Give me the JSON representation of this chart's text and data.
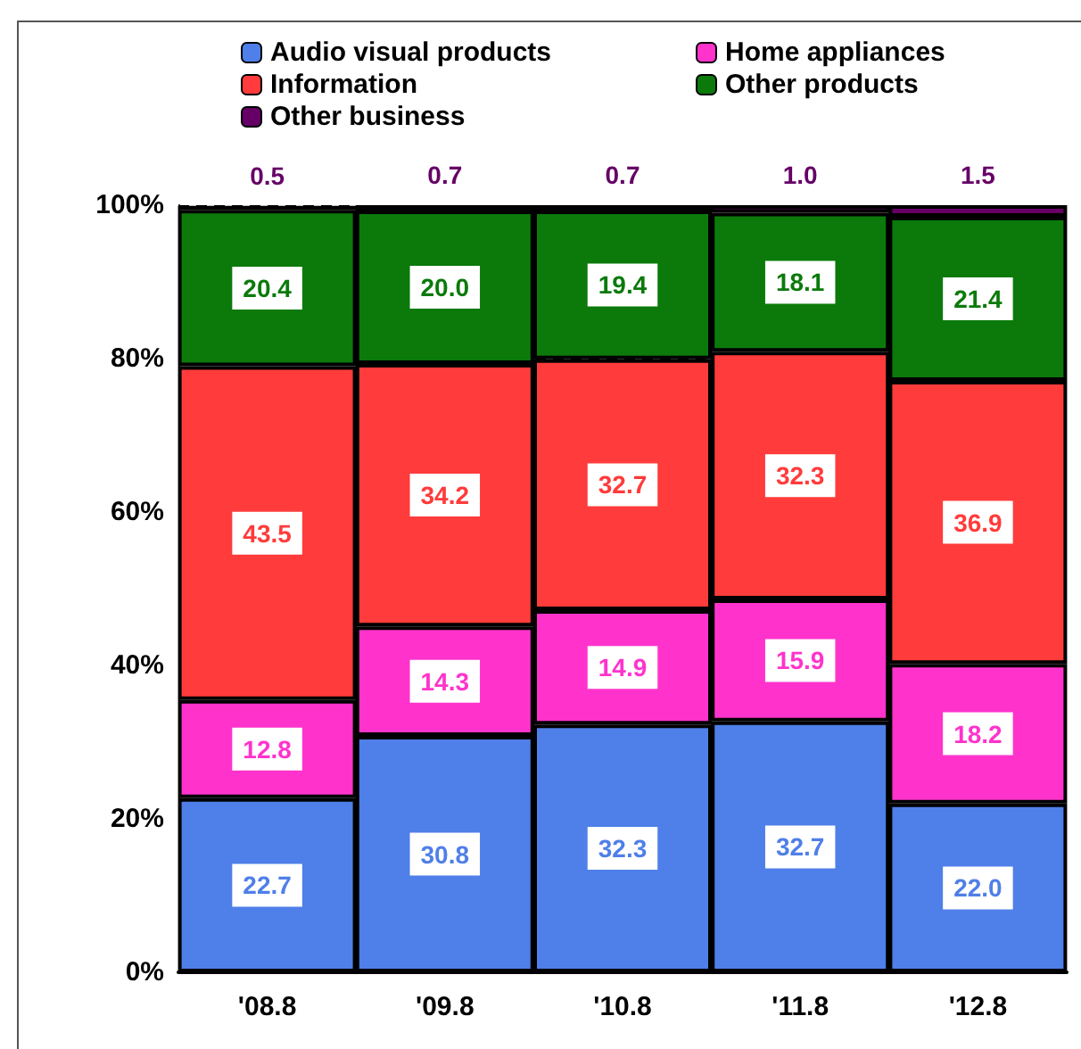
{
  "chart_data": {
    "type": "bar",
    "stacked": true,
    "categories": [
      "'08.8",
      "'09.8",
      "'10.8",
      "'11.8",
      "'12.8"
    ],
    "series": [
      {
        "name": "Audio visual products",
        "color": "#4f7fe8",
        "values": [
          22.7,
          30.8,
          32.3,
          32.7,
          22.0
        ],
        "value_labels": [
          "22.7",
          "30.8",
          "32.3",
          "32.7",
          "22.0"
        ]
      },
      {
        "name": "Home appliances",
        "color": "#ff33cc",
        "values": [
          12.8,
          14.3,
          14.9,
          15.9,
          18.2
        ],
        "value_labels": [
          "12.8",
          "14.3",
          "14.9",
          "15.9",
          "18.2"
        ]
      },
      {
        "name": "Information",
        "color": "#ff3b3b",
        "values": [
          43.5,
          34.2,
          32.7,
          32.3,
          36.9
        ],
        "value_labels": [
          "43.5",
          "34.2",
          "32.7",
          "32.3",
          "36.9"
        ]
      },
      {
        "name": "Other products",
        "color": "#0b7a0b",
        "values": [
          20.4,
          20.0,
          19.4,
          18.1,
          21.4
        ],
        "value_labels": [
          "20.4",
          "20.0",
          "19.4",
          "18.1",
          "21.4"
        ]
      },
      {
        "name": "Other business",
        "color": "#660066",
        "values": [
          0.5,
          0.7,
          0.7,
          1.0,
          1.5
        ],
        "value_labels": [
          "0.5",
          "0.7",
          "0.7",
          "1.0",
          "1.5"
        ]
      }
    ],
    "ylim": [
      0,
      100
    ],
    "yticks": [
      {
        "value": 0,
        "label": "0%"
      },
      {
        "value": 20,
        "label": "20%"
      },
      {
        "value": 40,
        "label": "40%"
      },
      {
        "value": 60,
        "label": "60%"
      },
      {
        "value": 80,
        "label": "80%"
      },
      {
        "value": 100,
        "label": "100%"
      }
    ],
    "grid": "y",
    "line_style": "dashed",
    "legend": "top"
  }
}
